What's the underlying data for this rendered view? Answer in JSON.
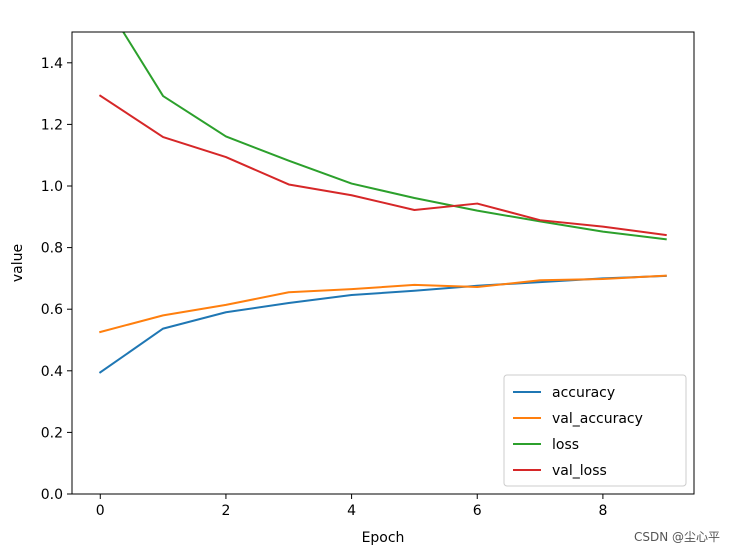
{
  "chart_data": {
    "type": "line",
    "title": "",
    "xlabel": "Epoch",
    "ylabel": "value",
    "x": [
      0,
      1,
      2,
      3,
      4,
      5,
      6,
      7,
      8,
      9
    ],
    "xlim": [
      -0.45,
      9.45
    ],
    "ylim": [
      0.0,
      1.5
    ],
    "xticks": [
      0,
      2,
      4,
      6,
      8
    ],
    "yticks": [
      0.0,
      0.2,
      0.4,
      0.6,
      0.8,
      1.0,
      1.2,
      1.4
    ],
    "xtick_labels": [
      "0",
      "2",
      "4",
      "6",
      "8"
    ],
    "ytick_labels": [
      "0.0",
      "0.2",
      "0.4",
      "0.6",
      "0.8",
      "1.0",
      "1.2",
      "1.4"
    ],
    "grid": false,
    "legend_position": "lower-right",
    "series": [
      {
        "name": "accuracy",
        "color": "#1f77b4",
        "values": [
          0.395,
          0.537,
          0.59,
          0.62,
          0.646,
          0.66,
          0.676,
          0.688,
          0.7,
          0.708
        ]
      },
      {
        "name": "val_accuracy",
        "color": "#ff7f0e",
        "values": [
          0.526,
          0.58,
          0.614,
          0.655,
          0.665,
          0.679,
          0.672,
          0.694,
          0.698,
          0.709
        ]
      },
      {
        "name": "loss",
        "color": "#2ca02c",
        "values": [
          1.62,
          1.292,
          1.161,
          1.082,
          1.008,
          0.961,
          0.92,
          0.885,
          0.852,
          0.827
        ]
      },
      {
        "name": "val_loss",
        "color": "#d62728",
        "values": [
          1.293,
          1.159,
          1.094,
          1.005,
          0.97,
          0.922,
          0.943,
          0.889,
          0.868,
          0.841
        ]
      }
    ]
  },
  "watermark": "CSDN @尘心平"
}
